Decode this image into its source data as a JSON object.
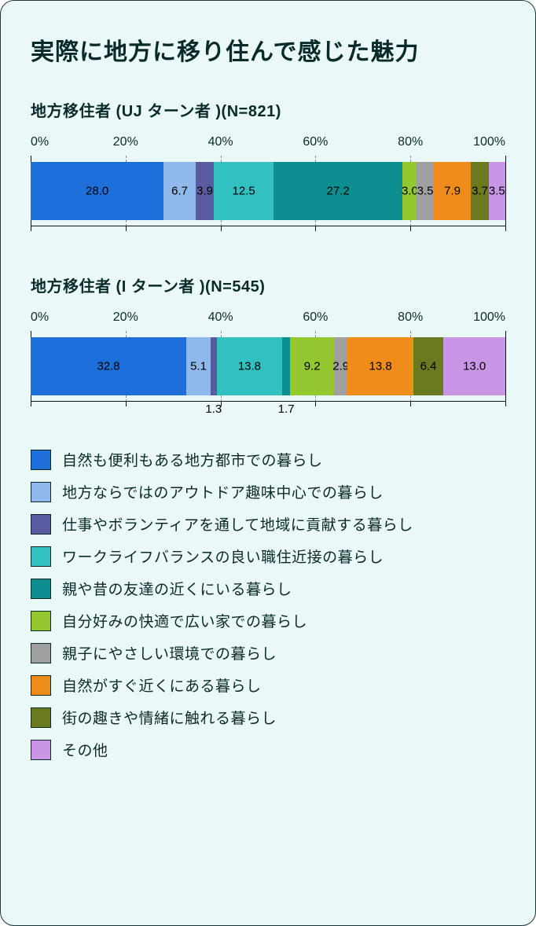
{
  "title": "実際に地方に移り住んで感じた魅力",
  "axis": {
    "ticks": [
      0,
      20,
      40,
      60,
      80,
      100
    ],
    "suffix": "%"
  },
  "colors": {
    "c0": "#1e6fd9",
    "c1": "#8fb8ec",
    "c2": "#5a5aa0",
    "c3": "#33c0c0",
    "c4": "#0d8f8f",
    "c5": "#93c92e",
    "c6": "#a0a0a0",
    "c7": "#f08c1a",
    "c8": "#6b7a1f",
    "c9": "#c996e6",
    "border": "#0a2a2a",
    "grid": "#889999",
    "bg": "#eaf8f8",
    "text": "#0a2a2a"
  },
  "charts": [
    {
      "subtitle": "地方移住者 (UJ ターン者 )(N=821)",
      "segments": [
        {
          "value": 28.0,
          "color": "c0",
          "label": "28.0",
          "pos": "in"
        },
        {
          "value": 6.7,
          "color": "c1",
          "label": "6.7",
          "pos": "in"
        },
        {
          "value": 3.9,
          "color": "c2",
          "label": "3.9",
          "pos": "in"
        },
        {
          "value": 12.5,
          "color": "c3",
          "label": "12.5",
          "pos": "in"
        },
        {
          "value": 27.2,
          "color": "c4",
          "label": "27.2",
          "pos": "in"
        },
        {
          "value": 3.0,
          "color": "c5",
          "label": "3.0",
          "pos": "in"
        },
        {
          "value": 3.5,
          "color": "c6",
          "label": "3.5",
          "pos": "in"
        },
        {
          "value": 7.9,
          "color": "c7",
          "label": "7.9",
          "pos": "in"
        },
        {
          "value": 3.7,
          "color": "c8",
          "label": "3.7",
          "pos": "in"
        },
        {
          "value": 3.5,
          "color": "c9",
          "label": "3.5",
          "pos": "in"
        }
      ]
    },
    {
      "subtitle": "地方移住者 (I ターン者 )(N=545)",
      "segments": [
        {
          "value": 32.8,
          "color": "c0",
          "label": "32.8",
          "pos": "in"
        },
        {
          "value": 5.1,
          "color": "c1",
          "label": "5.1",
          "pos": "in"
        },
        {
          "value": 1.3,
          "color": "c2",
          "label": "1.3",
          "pos": "below"
        },
        {
          "value": 13.8,
          "color": "c3",
          "label": "13.8",
          "pos": "in"
        },
        {
          "value": 1.7,
          "color": "c4",
          "label": "1.7",
          "pos": "below"
        },
        {
          "value": 9.2,
          "color": "c5",
          "label": "9.2",
          "pos": "in"
        },
        {
          "value": 2.9,
          "color": "c6",
          "label": "2.9",
          "pos": "in"
        },
        {
          "value": 13.8,
          "color": "c7",
          "label": "13.8",
          "pos": "in"
        },
        {
          "value": 6.4,
          "color": "c8",
          "label": "6.4",
          "pos": "in"
        },
        {
          "value": 13.0,
          "color": "c9",
          "label": "13.0",
          "pos": "in"
        }
      ]
    }
  ],
  "legend": [
    {
      "color": "c0",
      "text": "自然も便利もある地方都市での暮らし"
    },
    {
      "color": "c1",
      "text": "地方ならではのアウトドア趣味中心での暮らし"
    },
    {
      "color": "c2",
      "text": "仕事やボランティアを通して地域に貢献する暮らし"
    },
    {
      "color": "c3",
      "text": "ワークライフバランスの良い職住近接の暮らし"
    },
    {
      "color": "c4",
      "text": "親や昔の友達の近くにいる暮らし"
    },
    {
      "color": "c5",
      "text": "自分好みの快適で広い家での暮らし"
    },
    {
      "color": "c6",
      "text": "親子にやさしい環境での暮らし"
    },
    {
      "color": "c7",
      "text": "自然がすぐ近くにある暮らし"
    },
    {
      "color": "c8",
      "text": "街の趣きや情緒に触れる暮らし"
    },
    {
      "color": "c9",
      "text": "その他"
    }
  ]
}
